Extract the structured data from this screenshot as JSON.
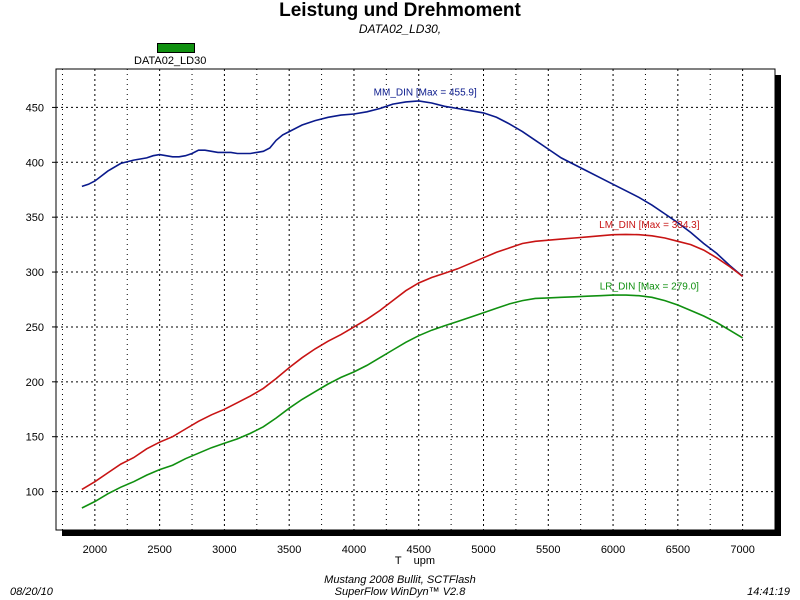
{
  "chart_data": {
    "type": "line",
    "title": "Leistung und Drehmoment",
    "subtitle": "DATA02_LD30,",
    "legend": [
      {
        "name": "DATA02_LD30",
        "color": "#109010"
      }
    ],
    "xlabel": "T    upm",
    "xlim": [
      1700,
      7250
    ],
    "ylim": [
      65,
      485
    ],
    "x_ticks": [
      2000,
      2500,
      3000,
      3500,
      4000,
      4500,
      5000,
      5500,
      6000,
      6500,
      7000
    ],
    "y_ticks": [
      100,
      150,
      200,
      250,
      300,
      350,
      400,
      450
    ],
    "grid": true,
    "series": [
      {
        "name": "MM_DIN [Max = 455.9]",
        "color": "#0a1a8c",
        "x": [
          1900,
          1950,
          2000,
          2100,
          2200,
          2300,
          2400,
          2450,
          2500,
          2550,
          2600,
          2650,
          2700,
          2750,
          2800,
          2850,
          2900,
          2950,
          3000,
          3050,
          3100,
          3150,
          3200,
          3250,
          3300,
          3350,
          3400,
          3450,
          3500,
          3600,
          3700,
          3800,
          3900,
          4000,
          4100,
          4200,
          4300,
          4400,
          4500,
          4600,
          4700,
          4800,
          4900,
          5000,
          5100,
          5200,
          5300,
          5400,
          5500,
          5600,
          5700,
          5800,
          5900,
          6000,
          6100,
          6200,
          6300,
          6400,
          6500,
          6600,
          6700,
          6800,
          6900,
          7000
        ],
        "values": [
          378,
          380,
          383,
          392,
          399,
          402,
          404,
          406,
          407,
          406,
          405,
          405,
          406,
          408,
          411,
          411,
          410,
          409,
          409,
          409,
          408,
          408,
          408,
          409,
          410,
          413,
          420,
          425,
          428,
          434,
          438,
          441,
          443,
          444,
          446,
          449,
          453,
          455,
          455.9,
          454,
          451,
          449,
          447,
          445,
          441,
          435,
          428,
          420,
          412,
          404,
          398,
          392,
          386,
          380,
          374,
          368,
          361,
          353,
          345,
          336,
          326,
          317,
          306,
          296
        ]
      },
      {
        "name": "LM_DIN [Max = 334.3]",
        "color": "#c81414",
        "x": [
          1900,
          2000,
          2100,
          2200,
          2300,
          2400,
          2500,
          2600,
          2700,
          2800,
          2900,
          3000,
          3100,
          3200,
          3300,
          3400,
          3500,
          3600,
          3700,
          3800,
          3900,
          4000,
          4100,
          4200,
          4300,
          4400,
          4500,
          4600,
          4700,
          4800,
          4900,
          5000,
          5100,
          5200,
          5300,
          5400,
          5500,
          5600,
          5700,
          5800,
          5900,
          6000,
          6100,
          6200,
          6300,
          6400,
          6500,
          6600,
          6700,
          6800,
          6900,
          7000
        ],
        "values": [
          102,
          109,
          117,
          125,
          131,
          139,
          145,
          150,
          157,
          164,
          170,
          175,
          181,
          187,
          194,
          203,
          213,
          222,
          230,
          237,
          243,
          250,
          257,
          265,
          274,
          283,
          290,
          295,
          299,
          303,
          308,
          313,
          318,
          322,
          326,
          328,
          329,
          330,
          331,
          332,
          333,
          334,
          334.3,
          334,
          333,
          331,
          328,
          325,
          320,
          313,
          305,
          296
        ]
      },
      {
        "name": "LR_DIN [Max = 279.0]",
        "color": "#109010",
        "x": [
          1900,
          2000,
          2100,
          2200,
          2300,
          2400,
          2500,
          2600,
          2700,
          2800,
          2900,
          3000,
          3100,
          3200,
          3300,
          3400,
          3500,
          3600,
          3700,
          3800,
          3900,
          4000,
          4100,
          4200,
          4300,
          4400,
          4500,
          4600,
          4700,
          4800,
          4900,
          5000,
          5100,
          5200,
          5300,
          5400,
          5500,
          5600,
          5700,
          5800,
          5900,
          6000,
          6100,
          6200,
          6300,
          6400,
          6500,
          6600,
          6700,
          6800,
          6900,
          7000
        ],
        "values": [
          85,
          91,
          98,
          104,
          109,
          115,
          120,
          124,
          130,
          135,
          140,
          144,
          148,
          153,
          159,
          167,
          176,
          184,
          191,
          198,
          204,
          209,
          215,
          222,
          229,
          236,
          242,
          247,
          251,
          255,
          259,
          263,
          267,
          271,
          274,
          276,
          276.5,
          277,
          277.5,
          278,
          278.5,
          279,
          279,
          278.5,
          277,
          274,
          270,
          265,
          260,
          254,
          247,
          240
        ]
      }
    ],
    "series_labels": [
      {
        "text": "MM_DIN [Max = 455.9]",
        "x": 4550,
        "y": 461,
        "color": "#0a1a8c"
      },
      {
        "text": "LM_DIN [Max = 334.3]",
        "x": 6280,
        "y": 340,
        "color": "#c81414"
      },
      {
        "text": "LR_DIN [Max = 279.0]",
        "x": 6280,
        "y": 284,
        "color": "#109010"
      }
    ]
  },
  "footer": {
    "date": "08/20/10",
    "line1": "Mustang 2008 Bullit, SCTFlash",
    "line2": "SuperFlow WinDyn™ V2.8",
    "time": "14:41:19"
  },
  "colors": {
    "plot_bg": "#ffffff",
    "shadow": "#000000"
  }
}
